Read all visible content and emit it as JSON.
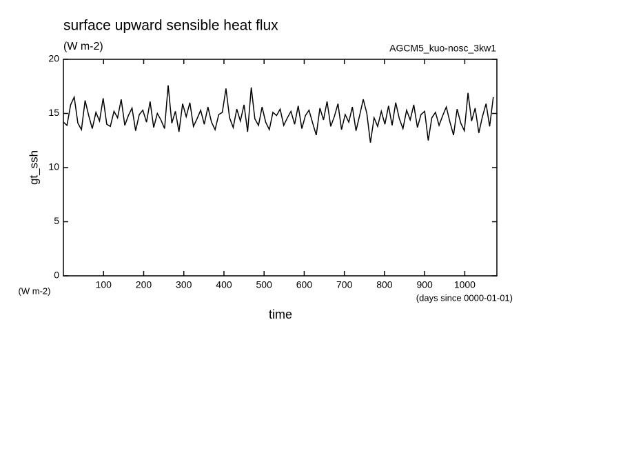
{
  "chart_data": {
    "type": "line",
    "title": "surface upward sensible heat flux",
    "subtitle": "(W m-2)",
    "annotation": "AGCM5_kuo-nosc_3kw1",
    "ylabel": "gt_ssh",
    "yunits": "(W m-2)",
    "xlabel": "time",
    "xunits": "(days since 0000-01-01)",
    "xlim": [
      0,
      1080
    ],
    "xticks": [
      100,
      200,
      300,
      400,
      500,
      600,
      700,
      800,
      900,
      1000
    ],
    "ylim": [
      0,
      20
    ],
    "yticks": [
      0,
      5,
      10,
      15,
      20
    ],
    "color": "#000000",
    "x": [
      0,
      9,
      18,
      27,
      36,
      45,
      54,
      63,
      72,
      81,
      90,
      99,
      108,
      117,
      126,
      135,
      144,
      153,
      162,
      171,
      180,
      189,
      198,
      207,
      216,
      225,
      234,
      243,
      252,
      261,
      270,
      279,
      288,
      297,
      306,
      315,
      324,
      333,
      342,
      351,
      360,
      369,
      378,
      387,
      396,
      405,
      414,
      423,
      432,
      441,
      450,
      459,
      468,
      477,
      486,
      495,
      504,
      513,
      522,
      531,
      540,
      549,
      558,
      567,
      576,
      585,
      594,
      603,
      612,
      621,
      630,
      639,
      648,
      657,
      666,
      675,
      684,
      693,
      702,
      711,
      720,
      729,
      738,
      747,
      756,
      765,
      774,
      783,
      792,
      801,
      810,
      819,
      828,
      837,
      846,
      855,
      864,
      873,
      882,
      891,
      900,
      909,
      918,
      927,
      936,
      945,
      954,
      963,
      972,
      981,
      990,
      999,
      1008,
      1017,
      1026,
      1035,
      1044,
      1053,
      1062,
      1071
    ],
    "values": [
      14.2,
      13.9,
      15.8,
      16.5,
      14.1,
      13.5,
      16.2,
      14.8,
      13.6,
      15.1,
      14.3,
      16.4,
      14.0,
      13.8,
      15.2,
      14.6,
      16.3,
      13.9,
      14.8,
      15.5,
      13.4,
      14.9,
      15.3,
      14.2,
      16.1,
      13.7,
      15.0,
      14.4,
      13.6,
      17.6,
      14.1,
      15.2,
      13.3,
      15.9,
      14.7,
      16.0,
      13.8,
      14.5,
      15.3,
      14.0,
      15.6,
      14.2,
      13.5,
      14.9,
      15.1,
      17.3,
      14.6,
      13.7,
      15.4,
      14.3,
      15.8,
      13.3,
      17.4,
      14.5,
      13.9,
      15.6,
      14.2,
      13.5,
      15.1,
      14.8,
      15.4,
      13.9,
      14.6,
      15.2,
      14.0,
      15.7,
      13.6,
      14.8,
      15.3,
      14.1,
      13.0,
      15.5,
      14.4,
      16.1,
      13.8,
      14.7,
      15.9,
      13.5,
      14.9,
      14.2,
      15.6,
      13.4,
      14.8,
      16.3,
      15.0,
      12.3,
      14.6,
      13.8,
      15.2,
      14.0,
      15.7,
      13.9,
      16.0,
      14.5,
      13.6,
      15.3,
      14.4,
      15.8,
      13.7,
      14.9,
      15.2,
      12.5,
      14.6,
      15.1,
      13.9,
      14.8,
      15.6,
      14.2,
      13.0,
      15.4,
      14.1,
      13.4,
      16.9,
      14.3,
      15.5,
      13.2,
      14.7,
      15.9,
      13.8,
      16.5
    ]
  }
}
